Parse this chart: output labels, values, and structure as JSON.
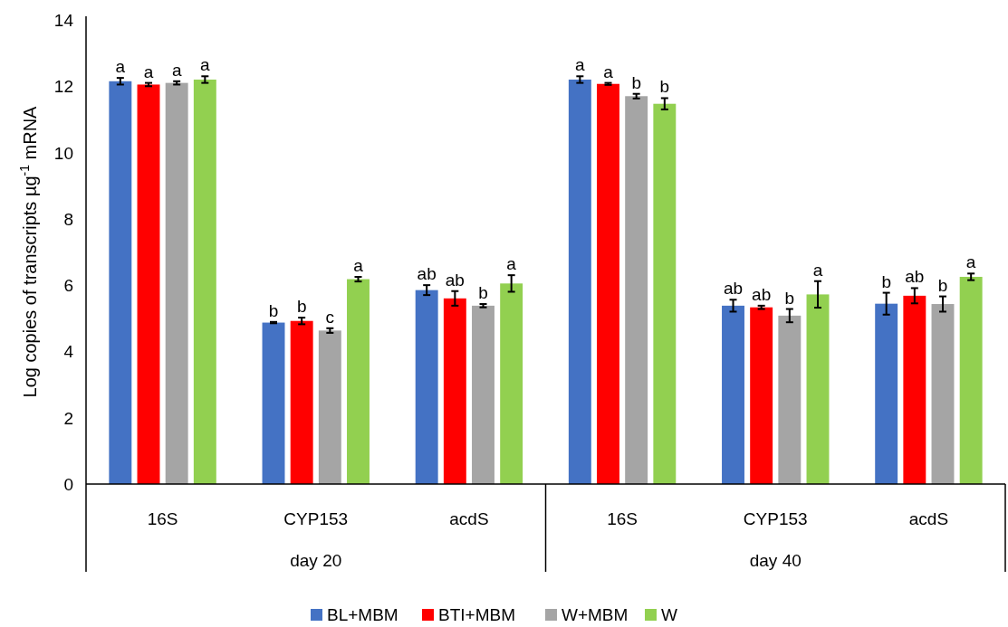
{
  "chart_data": {
    "type": "bar",
    "ylabel": "Log copies of transcripts µg$^{-1}$ mRNA",
    "categories": [
      "16S",
      "CYP153",
      "acdS",
      "16S",
      "CYP153",
      "acdS"
    ],
    "annotations": [
      "day 20",
      "day 40"
    ],
    "ylim": [
      0,
      14
    ],
    "yticks": [
      0,
      2,
      4,
      6,
      8,
      10,
      12,
      14
    ],
    "legend": "bottom",
    "series": [
      {
        "name": "BL+MBM",
        "color": "#4472c4",
        "values": [
          12.15,
          4.87,
          5.85,
          12.2,
          5.38,
          5.44
        ],
        "errors": [
          0.1,
          0.02,
          0.15,
          0.1,
          0.18,
          0.33
        ],
        "value_labels": [
          "a",
          "b",
          "ab",
          "a",
          "ab",
          "b"
        ]
      },
      {
        "name": "BTI+MBM",
        "color": "#ff0000",
        "values": [
          12.05,
          4.92,
          5.6,
          12.07,
          5.33,
          5.68
        ],
        "errors": [
          0.05,
          0.1,
          0.22,
          0.03,
          0.05,
          0.23
        ],
        "value_labels": [
          "a",
          "b",
          "ab",
          "a",
          "ab",
          "ab"
        ]
      },
      {
        "name": "W+MBM",
        "color": "#a5a5a5",
        "values": [
          12.1,
          4.63,
          5.38,
          11.7,
          5.08,
          5.43
        ],
        "errors": [
          0.05,
          0.07,
          0.05,
          0.07,
          0.2,
          0.23
        ],
        "value_labels": [
          "a",
          "c",
          "b",
          "b",
          "b",
          "b"
        ]
      },
      {
        "name": "W",
        "color": "#92d050",
        "values": [
          12.2,
          6.18,
          6.05,
          11.47,
          5.72,
          6.25
        ],
        "errors": [
          0.1,
          0.07,
          0.25,
          0.17,
          0.4,
          0.1
        ],
        "value_labels": [
          "a",
          "a",
          "a",
          "b",
          "a",
          "a"
        ]
      }
    ]
  }
}
